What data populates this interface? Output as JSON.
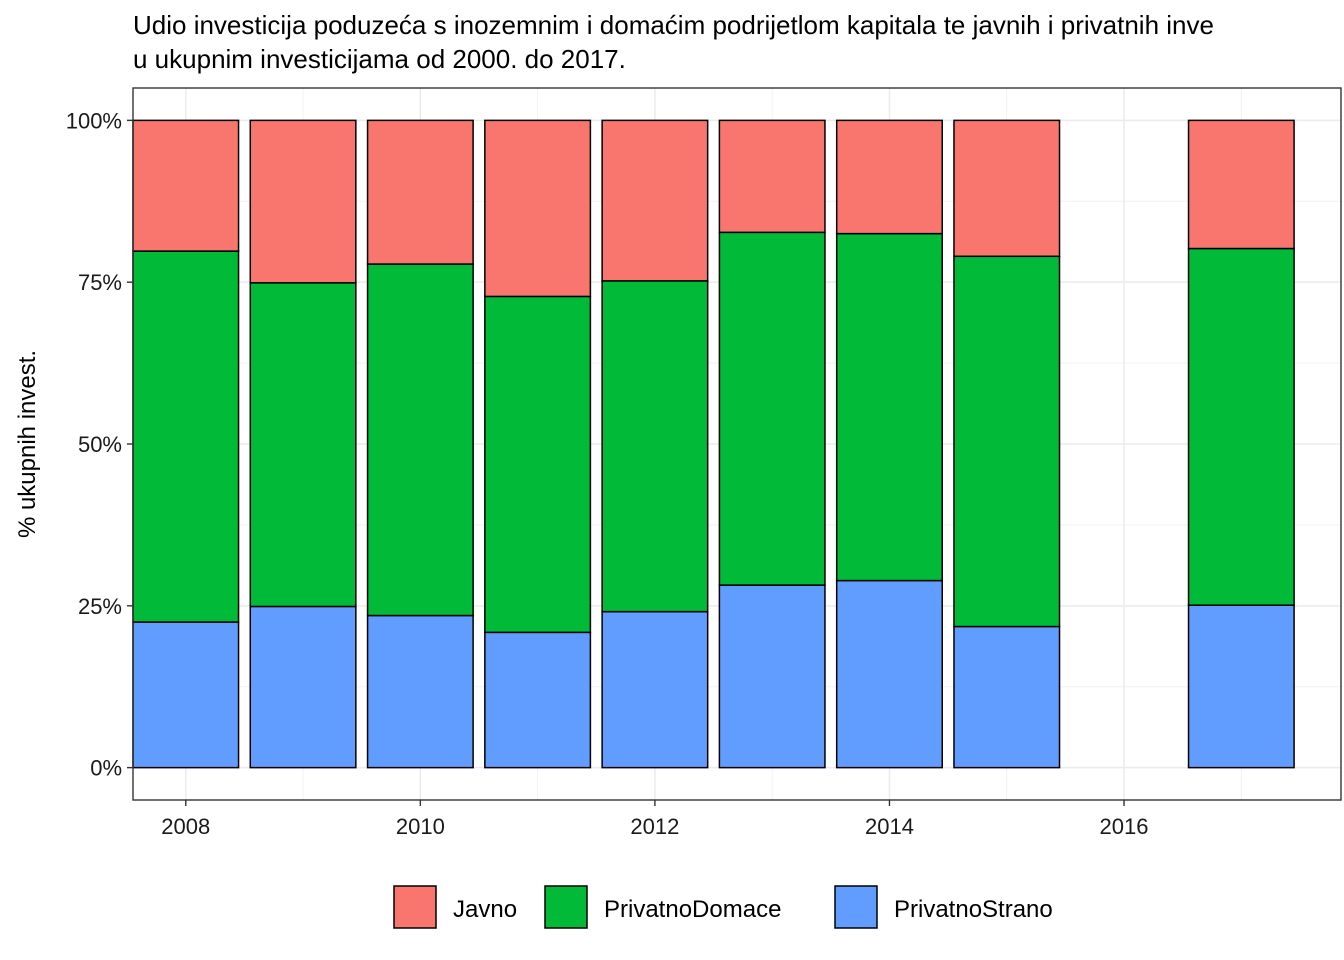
{
  "chart_data": {
    "type": "bar",
    "stacked": true,
    "title_line1": "Udio investicija poduzeća s inozemnim i domaćim podrijetlom kapitala te javnih i privatnih inve",
    "title_line2": "u ukupnim investicijama od 2000. do 2017.",
    "xlabel": "",
    "ylabel": "% ukupnih invest.",
    "x": [
      2008,
      2009,
      2010,
      2011,
      2012,
      2013,
      2014,
      2015,
      2017
    ],
    "xlim": [
      2007.55,
      2017.85
    ],
    "x_ticks": [
      2008,
      2010,
      2012,
      2014,
      2016
    ],
    "x_tick_labels": [
      "2008",
      "2010",
      "2012",
      "2014",
      "2016"
    ],
    "ylim": [
      -0.05,
      1.05
    ],
    "y_ticks": [
      0,
      0.25,
      0.5,
      0.75,
      1.0
    ],
    "y_tick_labels": [
      "0%",
      "25%",
      "50%",
      "75%",
      "100%"
    ],
    "grid": true,
    "legend_position": "bottom",
    "series": [
      {
        "name": "PrivatnoStrano",
        "color": "#619CFF",
        "values": [
          0.225,
          0.249,
          0.235,
          0.209,
          0.241,
          0.282,
          0.289,
          0.218,
          0.251
        ]
      },
      {
        "name": "PrivatnoDomace",
        "color": "#00BA38",
        "values": [
          0.573,
          0.5,
          0.543,
          0.519,
          0.511,
          0.545,
          0.536,
          0.572,
          0.551
        ]
      },
      {
        "name": "Javno",
        "color": "#F8766D",
        "values": [
          0.202,
          0.251,
          0.222,
          0.272,
          0.248,
          0.173,
          0.175,
          0.21,
          0.198
        ]
      }
    ],
    "legend_order": [
      "Javno",
      "PrivatnoDomace",
      "PrivatnoStrano"
    ]
  }
}
